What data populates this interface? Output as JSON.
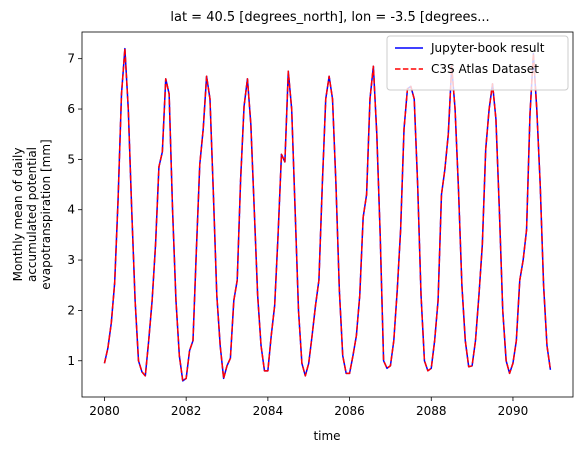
{
  "chart_data": {
    "type": "line",
    "title": "lat = 40.5 [degrees_north], lon = -3.5 [degrees...",
    "xlabel": "time",
    "ylabel": [
      "Monthly mean of daily",
      "accumulated potential",
      "evapotranspiration [mm]"
    ],
    "x": [
      2080,
      2080.083,
      2080.167,
      2080.25,
      2080.333,
      2080.417,
      2080.5,
      2080.583,
      2080.667,
      2080.75,
      2080.833,
      2080.917,
      2081,
      2081.083,
      2081.167,
      2081.25,
      2081.333,
      2081.417,
      2081.5,
      2081.583,
      2081.667,
      2081.75,
      2081.833,
      2081.917,
      2082,
      2082.083,
      2082.167,
      2082.25,
      2082.333,
      2082.417,
      2082.5,
      2082.583,
      2082.667,
      2082.75,
      2082.833,
      2082.917,
      2083,
      2083.083,
      2083.167,
      2083.25,
      2083.333,
      2083.417,
      2083.5,
      2083.583,
      2083.667,
      2083.75,
      2083.833,
      2083.917,
      2084,
      2084.083,
      2084.167,
      2084.25,
      2084.333,
      2084.417,
      2084.5,
      2084.583,
      2084.667,
      2084.75,
      2084.833,
      2084.917,
      2085,
      2085.083,
      2085.167,
      2085.25,
      2085.333,
      2085.417,
      2085.5,
      2085.583,
      2085.667,
      2085.75,
      2085.833,
      2085.917,
      2086,
      2086.083,
      2086.167,
      2086.25,
      2086.333,
      2086.417,
      2086.5,
      2086.583,
      2086.667,
      2086.75,
      2086.833,
      2086.917,
      2087,
      2087.083,
      2087.167,
      2087.25,
      2087.333,
      2087.417,
      2087.5,
      2087.583,
      2087.667,
      2087.75,
      2087.833,
      2087.917,
      2088,
      2088.083,
      2088.167,
      2088.25,
      2088.333,
      2088.417,
      2088.5,
      2088.583,
      2088.667,
      2088.75,
      2088.833,
      2088.917,
      2089,
      2089.083,
      2089.167,
      2089.25,
      2089.333,
      2089.417,
      2089.5,
      2089.583,
      2089.667,
      2089.75,
      2089.833,
      2089.917,
      2090,
      2090.083,
      2090.167,
      2090.25,
      2090.333,
      2090.417,
      2090.5,
      2090.583,
      2090.667,
      2090.75,
      2090.833,
      2090.917
    ],
    "series": [
      {
        "name": "Jupyter-book result",
        "color": "#0000ff",
        "dash": false,
        "values": [
          0.95,
          1.25,
          1.75,
          2.55,
          4.2,
          6.3,
          7.2,
          6.0,
          4.0,
          2.2,
          1.0,
          0.78,
          0.7,
          1.4,
          2.2,
          3.3,
          4.85,
          5.15,
          6.6,
          6.3,
          4.0,
          2.2,
          1.1,
          0.6,
          0.65,
          1.2,
          1.4,
          3.2,
          4.9,
          5.6,
          6.65,
          6.2,
          4.3,
          2.3,
          1.3,
          0.65,
          0.9,
          1.05,
          2.2,
          2.6,
          4.6,
          6.05,
          6.6,
          5.7,
          4.0,
          2.3,
          1.3,
          0.8,
          0.8,
          1.5,
          2.1,
          3.5,
          5.1,
          4.95,
          6.75,
          6.0,
          4.0,
          2.0,
          0.95,
          0.7,
          0.95,
          1.5,
          2.1,
          2.6,
          4.5,
          6.2,
          6.65,
          6.2,
          4.5,
          2.4,
          1.1,
          0.75,
          0.75,
          1.1,
          1.5,
          2.3,
          3.85,
          4.3,
          6.2,
          6.85,
          5.5,
          3.5,
          1.0,
          0.85,
          0.9,
          1.4,
          2.4,
          3.6,
          5.6,
          6.4,
          6.45,
          6.2,
          4.5,
          2.3,
          1.0,
          0.8,
          0.85,
          1.4,
          2.2,
          4.3,
          4.8,
          5.5,
          6.85,
          6.0,
          4.4,
          2.5,
          1.4,
          0.88,
          0.9,
          1.4,
          2.3,
          3.3,
          5.2,
          6.0,
          6.5,
          5.8,
          4.0,
          2.0,
          1.0,
          0.75,
          0.95,
          1.4,
          2.6,
          3.0,
          3.6,
          5.9,
          7.1,
          6.0,
          4.5,
          2.5,
          1.3,
          0.82
        ]
      },
      {
        "name": "C3S Atlas Dataset",
        "color": "#ff0000",
        "dash": true,
        "values": [
          0.95,
          1.25,
          1.75,
          2.55,
          4.2,
          6.3,
          7.2,
          6.0,
          4.0,
          2.2,
          1.0,
          0.78,
          0.7,
          1.4,
          2.2,
          3.3,
          4.85,
          5.15,
          6.6,
          6.3,
          4.0,
          2.2,
          1.1,
          0.6,
          0.65,
          1.2,
          1.4,
          3.2,
          4.9,
          5.6,
          6.65,
          6.2,
          4.3,
          2.3,
          1.3,
          0.65,
          0.9,
          1.05,
          2.2,
          2.6,
          4.6,
          6.05,
          6.6,
          5.7,
          4.0,
          2.3,
          1.3,
          0.8,
          0.8,
          1.5,
          2.1,
          3.5,
          5.1,
          4.95,
          6.75,
          6.0,
          4.0,
          2.0,
          0.95,
          0.7,
          0.95,
          1.5,
          2.1,
          2.6,
          4.5,
          6.2,
          6.65,
          6.2,
          4.5,
          2.4,
          1.1,
          0.75,
          0.75,
          1.1,
          1.5,
          2.3,
          3.85,
          4.3,
          6.2,
          6.85,
          5.5,
          3.5,
          1.0,
          0.85,
          0.9,
          1.4,
          2.4,
          3.6,
          5.6,
          6.4,
          6.45,
          6.2,
          4.5,
          2.3,
          1.0,
          0.8,
          0.85,
          1.4,
          2.2,
          4.3,
          4.8,
          5.5,
          6.85,
          6.0,
          4.4,
          2.5,
          1.4,
          0.88,
          0.9,
          1.4,
          2.3,
          3.3,
          5.2,
          6.0,
          6.5,
          5.8,
          4.0,
          2.0,
          1.0,
          0.75,
          0.95,
          1.4,
          2.6,
          3.0,
          3.6,
          5.9,
          7.1,
          6.0,
          4.5,
          2.5,
          1.3,
          0.82
        ]
      }
    ],
    "xlim": [
      2079.45,
      2091.47
    ],
    "ylim": [
      0.28,
      7.53
    ],
    "xticks": [
      2080,
      2082,
      2084,
      2086,
      2088,
      2090
    ],
    "yticks": [
      1,
      2,
      3,
      4,
      5,
      6,
      7
    ],
    "legend": "upper right"
  }
}
